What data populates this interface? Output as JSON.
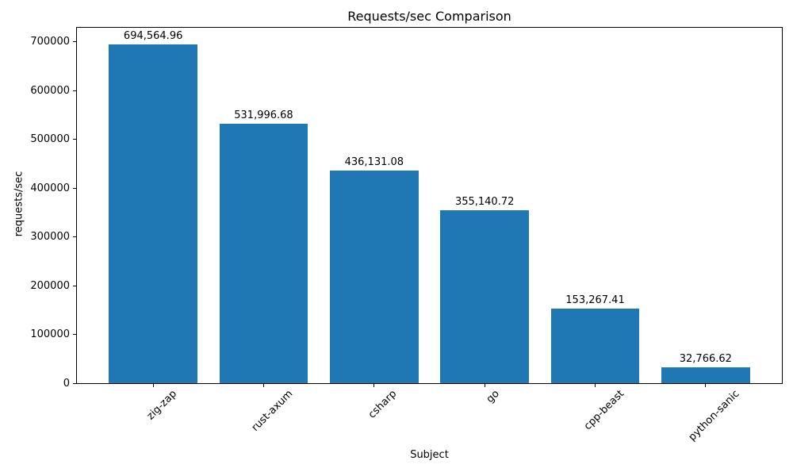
{
  "figure": {
    "background": "#ffffff"
  },
  "chart_data": {
    "type": "bar",
    "title": "Requests/sec Comparison",
    "xlabel": "Subject",
    "ylabel": "requests/sec",
    "categories": [
      "zig-zap",
      "rust-axum",
      "csharp",
      "go",
      "cpp-beast",
      "python-sanic"
    ],
    "values": [
      694564.96,
      531996.68,
      436131.08,
      355140.72,
      153267.41,
      32766.62
    ],
    "bar_value_labels": [
      "694,564.96",
      "531,996.68",
      "436,131.08",
      "355,140.72",
      "153,267.41",
      "32,766.62"
    ],
    "bar_color": "#1f77b4",
    "ytick_values": [
      0,
      100000,
      200000,
      300000,
      400000,
      500000,
      600000,
      700000
    ],
    "ytick_labels": [
      "0",
      "100000",
      "200000",
      "300000",
      "400000",
      "500000",
      "600000",
      "700000"
    ],
    "ylim": [
      0,
      729293
    ],
    "xlim": [
      -0.69,
      5.69
    ],
    "bar_width_fraction": 0.8,
    "x_tick_label_rotation_deg": 45,
    "grid": false,
    "legend": "none"
  }
}
